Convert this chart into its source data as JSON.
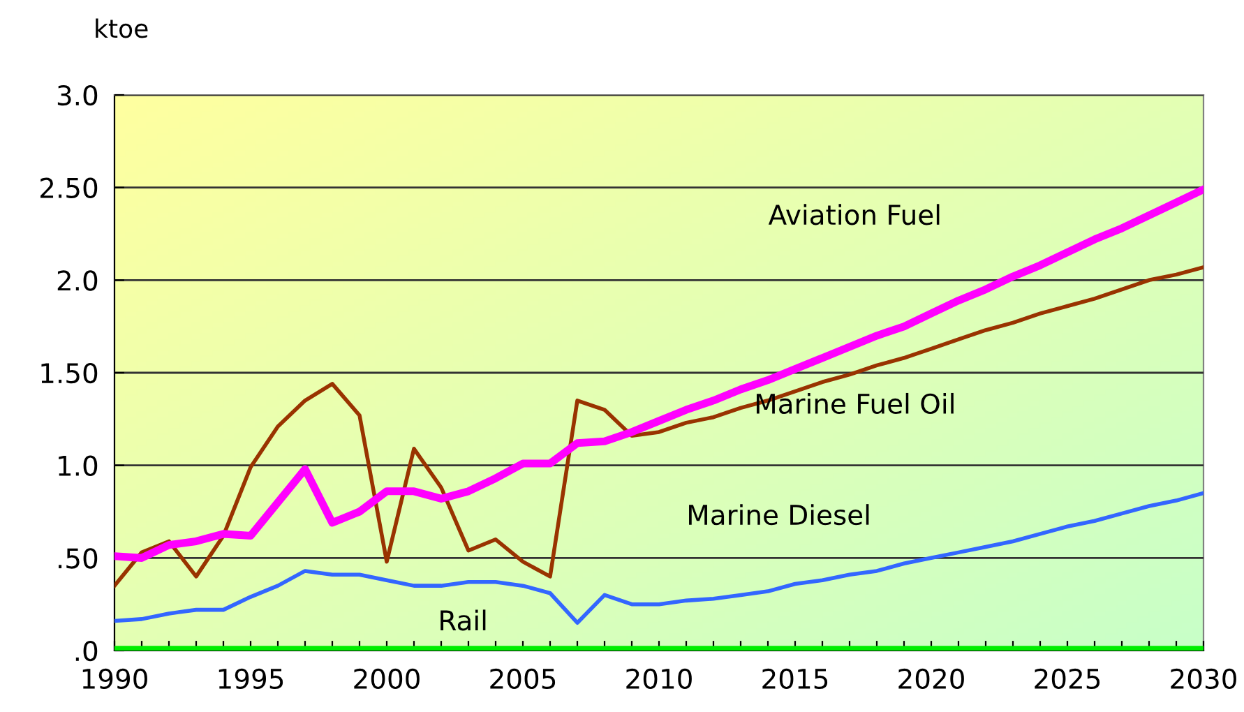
{
  "chart_data": {
    "type": "line",
    "ylabel": "ktoe",
    "x": [
      1990,
      1991,
      1992,
      1993,
      1994,
      1995,
      1996,
      1997,
      1998,
      1999,
      2000,
      2001,
      2002,
      2003,
      2004,
      2005,
      2006,
      2007,
      2008,
      2009,
      2010,
      2011,
      2012,
      2013,
      2014,
      2015,
      2016,
      2017,
      2018,
      2019,
      2020,
      2021,
      2022,
      2023,
      2024,
      2025,
      2026,
      2027,
      2028,
      2029,
      2030
    ],
    "series": [
      {
        "name": "Aviation Fuel",
        "color": "#ff00ff",
        "values": [
          0.51,
          0.5,
          0.57,
          0.59,
          0.63,
          0.62,
          0.8,
          0.98,
          0.69,
          0.75,
          0.86,
          0.86,
          0.82,
          0.86,
          0.93,
          1.01,
          1.01,
          1.12,
          1.13,
          1.18,
          1.24,
          1.3,
          1.35,
          1.41,
          1.46,
          1.52,
          1.58,
          1.64,
          1.7,
          1.75,
          1.82,
          1.89,
          1.95,
          2.02,
          2.08,
          2.15,
          2.22,
          2.28,
          2.35,
          2.42,
          2.49
        ]
      },
      {
        "name": "Marine Fuel Oil",
        "color": "#993300",
        "values": [
          0.35,
          0.53,
          0.59,
          0.4,
          0.62,
          0.99,
          1.21,
          1.35,
          1.44,
          1.27,
          0.48,
          1.09,
          0.88,
          0.54,
          0.6,
          0.48,
          0.4,
          1.35,
          1.3,
          1.16,
          1.18,
          1.23,
          1.26,
          1.31,
          1.35,
          1.4,
          1.45,
          1.49,
          1.54,
          1.58,
          1.63,
          1.68,
          1.73,
          1.77,
          1.82,
          1.86,
          1.9,
          1.95,
          2.0,
          2.03,
          2.07
        ]
      },
      {
        "name": "Marine Diesel",
        "color": "#3366ff",
        "values": [
          0.16,
          0.17,
          0.2,
          0.22,
          0.22,
          0.29,
          0.35,
          0.43,
          0.41,
          0.41,
          0.38,
          0.35,
          0.35,
          0.37,
          0.37,
          0.35,
          0.31,
          0.15,
          0.3,
          0.25,
          0.25,
          0.27,
          0.28,
          0.3,
          0.32,
          0.36,
          0.38,
          0.41,
          0.43,
          0.47,
          0.5,
          0.53,
          0.56,
          0.59,
          0.63,
          0.67,
          0.7,
          0.74,
          0.78,
          0.81,
          0.85
        ]
      },
      {
        "name": "Rail",
        "color": "#00ee00",
        "values": [
          0.01,
          0.01,
          0.01,
          0.01,
          0.01,
          0.01,
          0.01,
          0.01,
          0.01,
          0.01,
          0.01,
          0.01,
          0.01,
          0.01,
          0.01,
          0.01,
          0.01,
          0.01,
          0.01,
          0.01,
          0.01,
          0.01,
          0.01,
          0.01,
          0.01,
          0.01,
          0.01,
          0.01,
          0.01,
          0.01,
          0.01,
          0.01,
          0.01,
          0.01,
          0.01,
          0.01,
          0.01,
          0.01,
          0.01,
          0.01,
          0.01
        ]
      }
    ],
    "xlim": [
      1990,
      2030
    ],
    "xticks": [
      1990,
      {
        "value": 1991,
        "label": null
      },
      {
        "value": 1992,
        "label": null
      },
      {
        "value": 1993,
        "label": null
      },
      {
        "value": 1994,
        "label": null
      },
      1995,
      {
        "value": 1996,
        "label": null
      },
      {
        "value": 1997,
        "label": null
      },
      {
        "value": 1998,
        "label": null
      },
      {
        "value": 1999,
        "label": null
      },
      2000,
      {
        "value": 2001,
        "label": null
      },
      {
        "value": 2002,
        "label": null
      },
      {
        "value": 2003,
        "label": null
      },
      {
        "value": 2004,
        "label": null
      },
      2005,
      {
        "value": 2006,
        "label": null
      },
      {
        "value": 2007,
        "label": null
      },
      {
        "value": 2008,
        "label": null
      },
      {
        "value": 2009,
        "label": null
      },
      2010,
      {
        "value": 2011,
        "label": null
      },
      {
        "value": 2012,
        "label": null
      },
      {
        "value": 2013,
        "label": null
      },
      {
        "value": 2014,
        "label": null
      },
      2015,
      {
        "value": 2016,
        "label": null
      },
      {
        "value": 2017,
        "label": null
      },
      {
        "value": 2018,
        "label": null
      },
      {
        "value": 2019,
        "label": null
      },
      2020,
      {
        "value": 2021,
        "label": null
      },
      {
        "value": 2022,
        "label": null
      },
      {
        "value": 2023,
        "label": null
      },
      {
        "value": 2024,
        "label": null
      },
      2025,
      {
        "value": 2026,
        "label": null
      },
      {
        "value": 2027,
        "label": null
      },
      {
        "value": 2028,
        "label": null
      },
      {
        "value": 2029,
        "label": null
      },
      2030
    ],
    "ylim": [
      0,
      3.0
    ],
    "yticks": [
      {
        "value": 0,
        "label": ".0"
      },
      {
        "value": 0.5,
        "label": ".50"
      },
      {
        "value": 1.0,
        "label": "1.0"
      },
      {
        "value": 1.5,
        "label": "1.50"
      },
      {
        "value": 2.0,
        "label": "2.0"
      },
      {
        "value": 2.5,
        "label": "2.50"
      },
      {
        "value": 3.0,
        "label": "3.0"
      }
    ],
    "grid": "y",
    "legend": false,
    "marker": "none",
    "line_style": "solid"
  }
}
